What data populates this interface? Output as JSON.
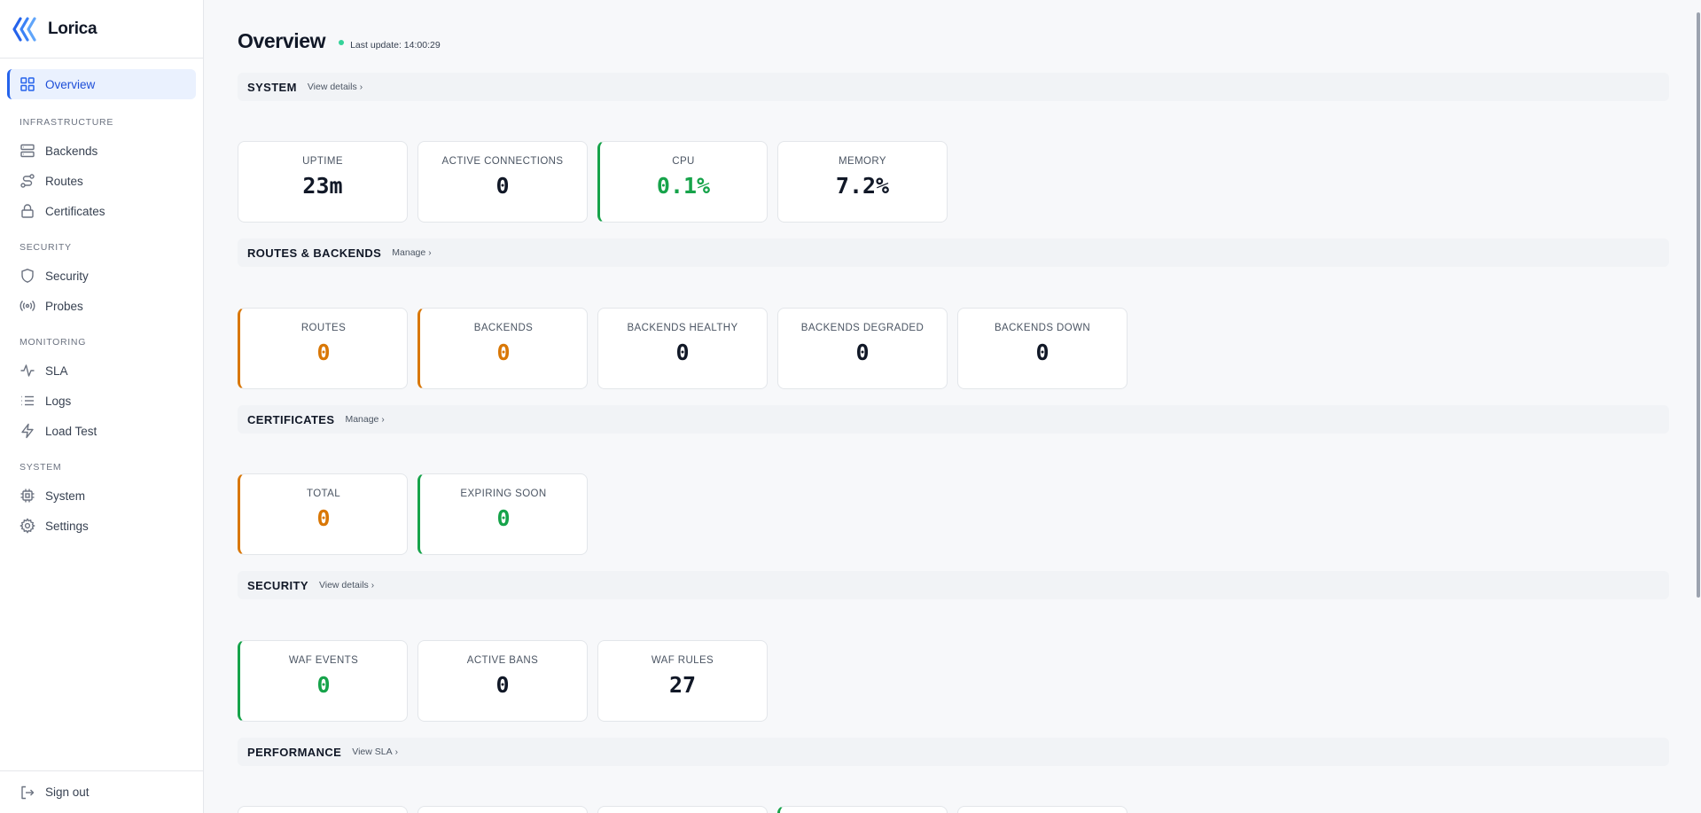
{
  "app": {
    "name": "Lorica"
  },
  "sidebar": {
    "overview": "Overview",
    "sections": {
      "infrastructure": "INFRASTRUCTURE",
      "security": "SECURITY",
      "monitoring": "MONITORING",
      "system": "SYSTEM"
    },
    "items": {
      "backends": "Backends",
      "routes": "Routes",
      "certificates": "Certificates",
      "security": "Security",
      "probes": "Probes",
      "sla": "SLA",
      "logs": "Logs",
      "load_test": "Load Test",
      "system": "System",
      "settings": "Settings"
    },
    "sign_out": "Sign out"
  },
  "header": {
    "title": "Overview",
    "last_update": "Last update: 14:00:29"
  },
  "sections": {
    "system": {
      "title": "SYSTEM",
      "link": "View details",
      "cards": [
        {
          "label": "UPTIME",
          "value": "23m"
        },
        {
          "label": "ACTIVE CONNECTIONS",
          "value": "0"
        },
        {
          "label": "CPU",
          "value": "0.1%"
        },
        {
          "label": "MEMORY",
          "value": "7.2%"
        }
      ]
    },
    "routes_backends": {
      "title": "ROUTES & BACKENDS",
      "link": "Manage",
      "cards": [
        {
          "label": "ROUTES",
          "value": "0"
        },
        {
          "label": "BACKENDS",
          "value": "0"
        },
        {
          "label": "BACKENDS HEALTHY",
          "value": "0"
        },
        {
          "label": "BACKENDS DEGRADED",
          "value": "0"
        },
        {
          "label": "BACKENDS DOWN",
          "value": "0"
        }
      ]
    },
    "certificates": {
      "title": "CERTIFICATES",
      "link": "Manage",
      "cards": [
        {
          "label": "TOTAL",
          "value": "0"
        },
        {
          "label": "EXPIRING SOON",
          "value": "0"
        }
      ]
    },
    "security": {
      "title": "SECURITY",
      "link": "View details",
      "cards": [
        {
          "label": "WAF EVENTS",
          "value": "0"
        },
        {
          "label": "ACTIVE BANS",
          "value": "0"
        },
        {
          "label": "WAF RULES",
          "value": "27"
        }
      ]
    },
    "performance": {
      "title": "PERFORMANCE",
      "link": "View SLA"
    }
  },
  "colors": {
    "accent": "#2563eb",
    "ok": "#16a34a",
    "warn": "#d97706",
    "live_dot": "#34d399"
  }
}
